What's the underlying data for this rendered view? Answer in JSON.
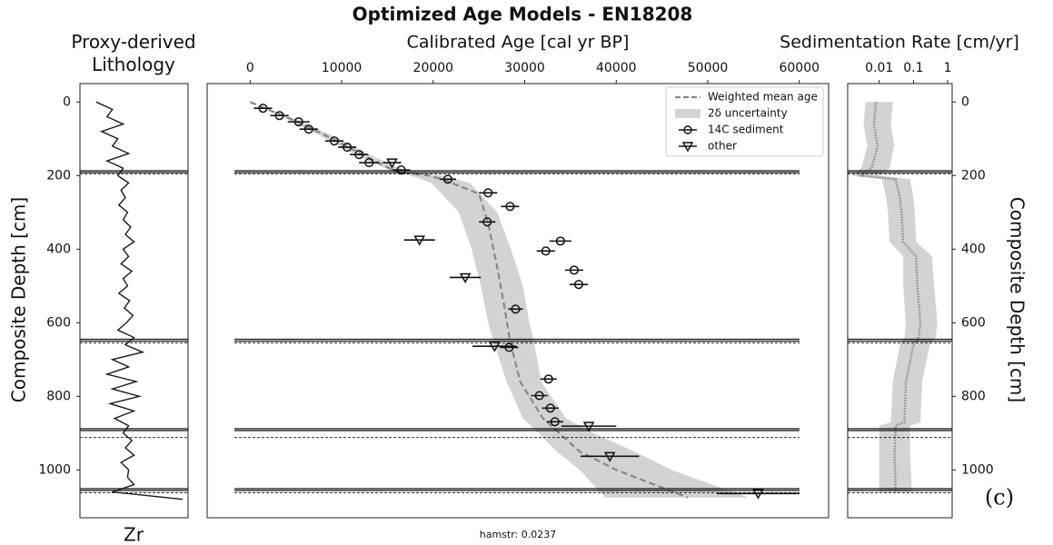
{
  "title": "Optimized Age Models - EN18208",
  "footnote": "hamstr: 0.0237",
  "panel_label": "(c)",
  "depth_markers": {
    "solid": [
      187,
      192,
      645,
      650,
      888,
      893,
      1051,
      1056
    ],
    "dashed": [
      196,
      655,
      912,
      1062
    ]
  },
  "chart_data": [
    {
      "type": "line",
      "title": "Proxy-derived Lithology",
      "xlabel": "Zr",
      "ylabel": "Composite Depth [cm]",
      "yaxis": "left",
      "color": "#1a1a1a",
      "xlim": [
        0,
        1
      ],
      "ylim": [
        -50,
        1130
      ],
      "y_inverted": true,
      "yticks": [
        0,
        200,
        400,
        600,
        800,
        1000
      ],
      "y": [
        0,
        20,
        40,
        60,
        80,
        100,
        120,
        140,
        160,
        180,
        200,
        220,
        240,
        260,
        280,
        300,
        320,
        340,
        360,
        380,
        400,
        420,
        440,
        460,
        480,
        500,
        520,
        540,
        560,
        580,
        600,
        620,
        640,
        660,
        680,
        700,
        720,
        740,
        760,
        780,
        800,
        820,
        840,
        860,
        880,
        900,
        920,
        940,
        960,
        980,
        1000,
        1020,
        1040,
        1060,
        1080
      ],
      "values": [
        0.15,
        0.3,
        0.25,
        0.4,
        0.2,
        0.35,
        0.3,
        0.45,
        0.25,
        0.4,
        0.35,
        0.45,
        0.38,
        0.42,
        0.36,
        0.44,
        0.4,
        0.47,
        0.42,
        0.5,
        0.4,
        0.45,
        0.38,
        0.48,
        0.4,
        0.44,
        0.36,
        0.46,
        0.41,
        0.49,
        0.43,
        0.35,
        0.5,
        0.42,
        0.58,
        0.3,
        0.45,
        0.25,
        0.52,
        0.3,
        0.55,
        0.28,
        0.5,
        0.32,
        0.45,
        0.4,
        0.48,
        0.42,
        0.5,
        0.38,
        0.45,
        0.44,
        0.5,
        0.3,
        0.95
      ]
    },
    {
      "type": "scatter",
      "title": "Calibrated Age [cal yr BP]",
      "xlim": [
        -4700,
        63200
      ],
      "xticks": [
        0,
        10000,
        20000,
        30000,
        40000,
        50000,
        60000
      ],
      "ylim": [
        -50,
        1130
      ],
      "y_inverted": true,
      "legend_loc": "upper right",
      "series": [
        {
          "name": "Weighted mean age",
          "color": "#888888",
          "style": "dashed",
          "depth": [
            0,
            50,
            100,
            150,
            190,
            200,
            210,
            250,
            330,
            450,
            560,
            650,
            760,
            860,
            950,
            1000,
            1075
          ],
          "values": [
            0,
            4800,
            9000,
            12800,
            16000,
            19500,
            21000,
            25000,
            26000,
            27000,
            27800,
            28400,
            29500,
            32000,
            36000,
            40000,
            47800
          ]
        },
        {
          "name": "2δ uncertainty",
          "color": "#d3d3d6",
          "style": "band",
          "depth": [
            0,
            50,
            100,
            150,
            185,
            200,
            220,
            300,
            400,
            500,
            600,
            650,
            760,
            860,
            900,
            950,
            1000,
            1075
          ],
          "lower": [
            0,
            4300,
            8300,
            12000,
            15200,
            17500,
            19800,
            22800,
            24200,
            25200,
            26000,
            26600,
            28000,
            29800,
            31500,
            33500,
            36000,
            38800
          ],
          "upper": [
            0,
            5300,
            9700,
            13600,
            16900,
            21000,
            24000,
            27000,
            28500,
            29800,
            30500,
            31000,
            31800,
            34500,
            37500,
            42000,
            46000,
            54500
          ]
        },
        {
          "name": "14C sediment",
          "color": "#111111",
          "marker": "circle",
          "depth": [
            17,
            37,
            54,
            74,
            106,
            123,
            143,
            165,
            185,
            210,
            247,
            284,
            326,
            378,
            405,
            457,
            496,
            563,
            667,
            753,
            798,
            832,
            869
          ],
          "values": [
            1400,
            3200,
            5300,
            6400,
            9200,
            10600,
            11900,
            13000,
            16500,
            21600,
            26000,
            28400,
            25900,
            33900,
            32300,
            35400,
            35900,
            29000,
            28300,
            32600,
            31600,
            32800,
            33300
          ],
          "errors": [
            1000,
            1000,
            1200,
            1000,
            1000,
            1000,
            1000,
            1100,
            1000,
            900,
            1000,
            1000,
            900,
            1200,
            1000,
            1000,
            1000,
            800,
            1000,
            900,
            900,
            900,
            900
          ]
        },
        {
          "name": "other",
          "color": "#111111",
          "marker": "triangle",
          "depth": [
            165,
            375,
            477,
            664,
            881,
            963,
            1064
          ],
          "values": [
            15500,
            18500,
            23500,
            26700,
            37000,
            39300,
            55500
          ],
          "errors": [
            1000,
            1700,
            1700,
            2400,
            3000,
            3200,
            4500
          ]
        }
      ]
    },
    {
      "type": "line",
      "title": "Sedimentation Rate [cm/yr]",
      "ylabel": "Composite Depth [cm]",
      "yaxis": "right",
      "log_x": true,
      "color": "#8c8c8c",
      "band_color": "#d3d3d6",
      "style": "dotted",
      "xlim": [
        0.0012,
        1.35
      ],
      "xticks": [
        0.01,
        0.1,
        1
      ],
      "ylim": [
        -50,
        1130
      ],
      "y_inverted": true,
      "yticks": [
        0,
        200,
        400,
        600,
        800,
        1000
      ],
      "y": [
        0,
        60,
        120,
        180,
        200,
        210,
        260,
        300,
        380,
        420,
        500,
        600,
        640,
        660,
        760,
        870,
        880,
        960,
        1060
      ],
      "values": [
        0.008,
        0.007,
        0.009,
        0.006,
        0.003,
        0.03,
        0.04,
        0.045,
        0.05,
        0.12,
        0.13,
        0.16,
        0.14,
        0.1,
        0.06,
        0.055,
        0.03,
        0.028,
        0.03
      ],
      "lower": [
        0.004,
        0.0035,
        0.0045,
        0.003,
        0.0015,
        0.012,
        0.016,
        0.018,
        0.02,
        0.05,
        0.05,
        0.06,
        0.055,
        0.04,
        0.025,
        0.022,
        0.01,
        0.01,
        0.01
      ],
      "upper": [
        0.025,
        0.022,
        0.027,
        0.02,
        0.01,
        0.08,
        0.1,
        0.11,
        0.12,
        0.35,
        0.4,
        0.5,
        0.45,
        0.3,
        0.18,
        0.16,
        0.08,
        0.08,
        0.09
      ]
    }
  ]
}
